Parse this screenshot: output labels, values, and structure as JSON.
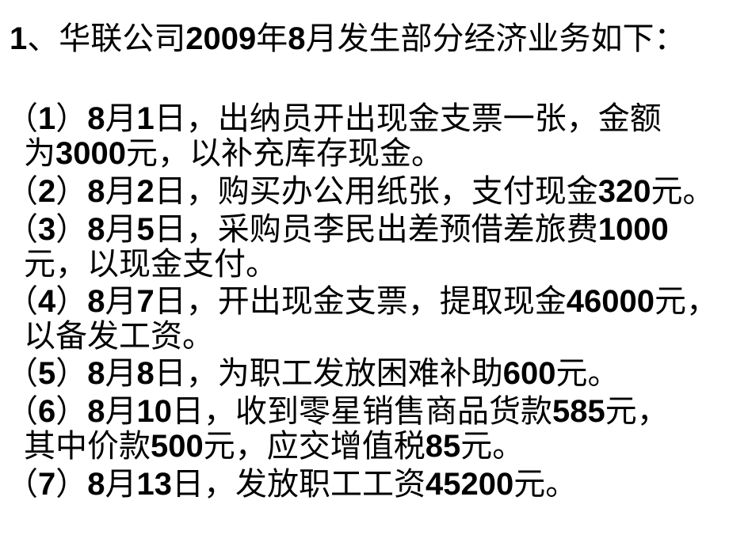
{
  "colors": {
    "background": "#ffffff",
    "text": "#000000"
  },
  "slide": {
    "title": "1、华联公司2009年8月发生部分经济业务如下：",
    "items": [
      "（1）8月1日，出纳员开出现金支票一张，金额\n为3000元，以补充库存现金。",
      "（2）8月2日，购买办公用纸张，支付现金320元。",
      "（3）8月5日，采购员李民出差预借差旅费1000\n元，以现金支付。",
      "（4）8月7日，开出现金支票，提取现金46000元，\n以备发工资。",
      "（5）8月8日，为职工发放困难补助600元。",
      "（6）8月10日，收到零星销售商品货款585元，\n其中价款500元，应交增值税85元。",
      "（7）8月13日，发放职工工资45200元。"
    ]
  }
}
